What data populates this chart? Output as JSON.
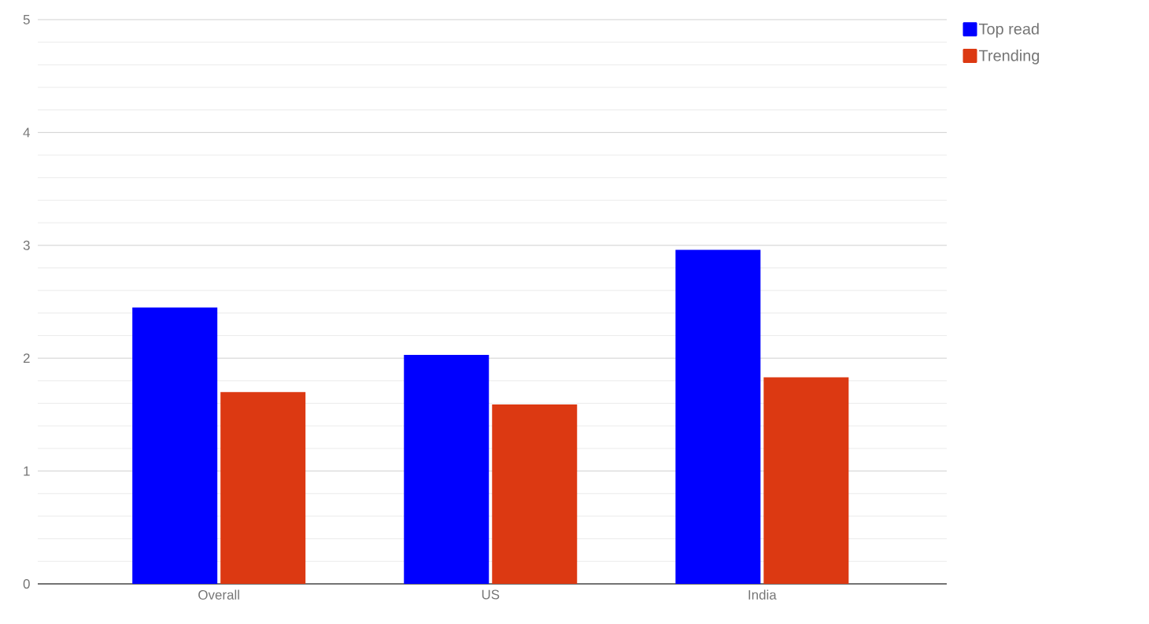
{
  "chart_data": {
    "type": "bar",
    "categories": [
      "Overall",
      "US",
      "India"
    ],
    "series": [
      {
        "name": "Top read",
        "color": "#0000ff",
        "values": [
          2.45,
          2.03,
          2.96
        ]
      },
      {
        "name": "Trending",
        "color": "#dc3912",
        "values": [
          1.7,
          1.59,
          1.83
        ]
      }
    ],
    "ylim": [
      0,
      5
    ],
    "yticks": [
      0,
      1,
      2,
      3,
      4,
      5
    ],
    "grid": "y",
    "legend": "top right"
  }
}
